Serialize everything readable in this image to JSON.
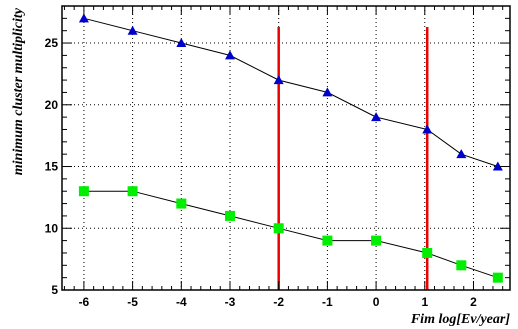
{
  "chart_data": {
    "type": "line",
    "title": "",
    "xlabel": "Fim log[Ev/year]",
    "ylabel": "minimum cluster multiplicity",
    "xlim": [
      -6.45,
      2.75
    ],
    "ylim": [
      5,
      28
    ],
    "grid": true,
    "x_ticks": [
      -6,
      -5,
      -4,
      -3,
      -2,
      -1,
      0,
      1,
      2
    ],
    "y_ticks": [
      5,
      10,
      15,
      20,
      25
    ],
    "series": [
      {
        "marker": "triangle",
        "color": "#0000cc",
        "x": [
          -6,
          -5,
          -4,
          -3,
          -2,
          -1,
          0,
          1.05,
          1.75,
          2.5
        ],
        "y": [
          27,
          26,
          25,
          24,
          22,
          21,
          19,
          18,
          16,
          15
        ]
      },
      {
        "marker": "square",
        "color": "#00ee00",
        "x": [
          -6,
          -5,
          -4,
          -3,
          -2,
          -1,
          0,
          1.05,
          1.75,
          2.5
        ],
        "y": [
          13,
          13,
          12,
          11,
          10,
          9,
          9,
          8,
          7,
          6
        ]
      }
    ],
    "vertical_lines": [
      {
        "x": -2,
        "y_top": 26.3,
        "color": "#ee0000"
      },
      {
        "x": 1.05,
        "y_top": 26.3,
        "color": "#ee0000"
      }
    ]
  }
}
